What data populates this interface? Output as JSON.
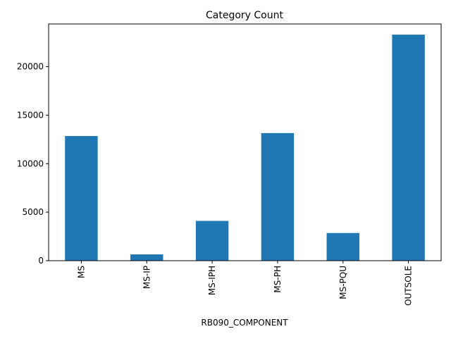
{
  "chart_data": {
    "type": "bar",
    "title": "Category Count",
    "xlabel": "RB090_COMPONENT",
    "ylabel": "",
    "categories": [
      "MS",
      "MS-IP",
      "MS-IPH",
      "MS-PH",
      "MS-PQU",
      "OUTSOLE"
    ],
    "values": [
      12850,
      650,
      4100,
      13150,
      2850,
      23300
    ],
    "ylim": [
      0,
      24400
    ],
    "yticks": [
      0,
      5000,
      10000,
      15000,
      20000
    ],
    "bar_color": "#1f77b4",
    "grid": false,
    "legend": "none"
  }
}
